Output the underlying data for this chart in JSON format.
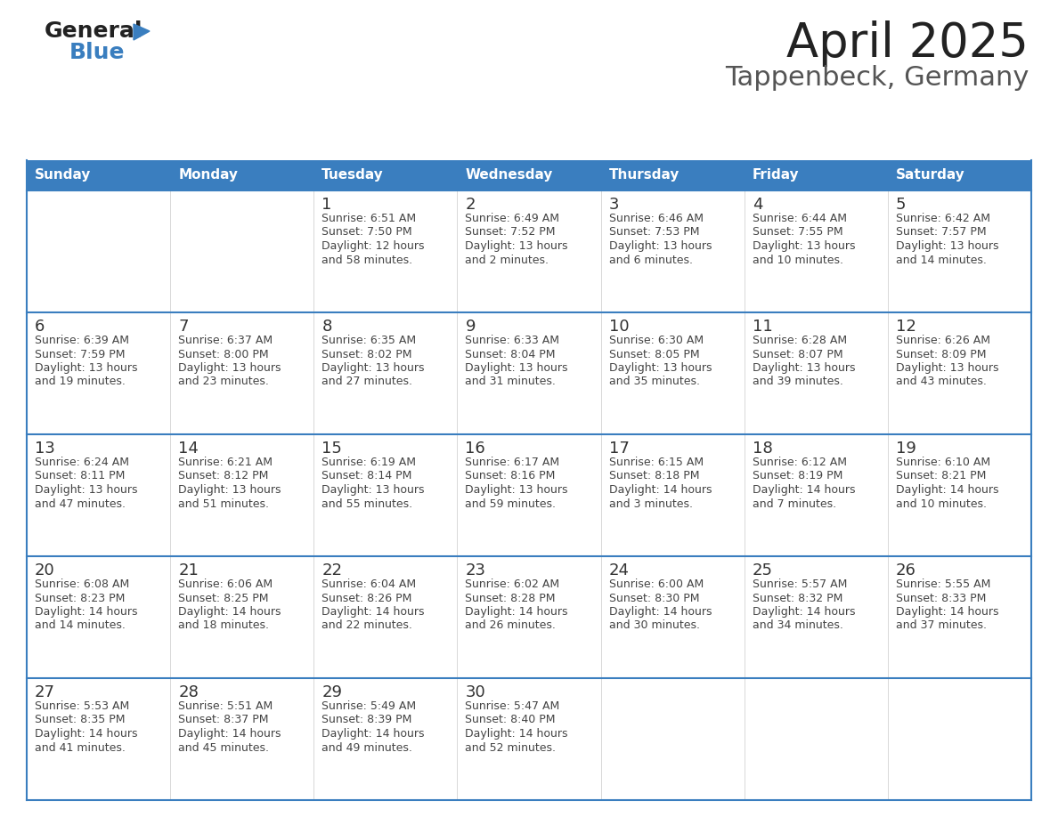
{
  "title": "April 2025",
  "subtitle": "Tappenbeck, Germany",
  "header_bg": "#3a7ebf",
  "header_text_color": "#ffffff",
  "cell_bg": "#ffffff",
  "cell_border_color": "#c8c8c8",
  "week_divider_color": "#3a7ebf",
  "day_number_color": "#333333",
  "cell_text_color": "#444444",
  "title_color": "#222222",
  "subtitle_color": "#555555",
  "logo_general_color": "#222222",
  "logo_blue_color": "#3a7ebf",
  "logo_triangle_color": "#3a7ebf",
  "day_names": [
    "Sunday",
    "Monday",
    "Tuesday",
    "Wednesday",
    "Thursday",
    "Friday",
    "Saturday"
  ],
  "calendar_data": [
    [
      {
        "day": "",
        "sunrise": "",
        "sunset": "",
        "daylight": ""
      },
      {
        "day": "",
        "sunrise": "",
        "sunset": "",
        "daylight": ""
      },
      {
        "day": "1",
        "sunrise": "Sunrise: 6:51 AM",
        "sunset": "Sunset: 7:50 PM",
        "daylight": "Daylight: 12 hours\nand 58 minutes."
      },
      {
        "day": "2",
        "sunrise": "Sunrise: 6:49 AM",
        "sunset": "Sunset: 7:52 PM",
        "daylight": "Daylight: 13 hours\nand 2 minutes."
      },
      {
        "day": "3",
        "sunrise": "Sunrise: 6:46 AM",
        "sunset": "Sunset: 7:53 PM",
        "daylight": "Daylight: 13 hours\nand 6 minutes."
      },
      {
        "day": "4",
        "sunrise": "Sunrise: 6:44 AM",
        "sunset": "Sunset: 7:55 PM",
        "daylight": "Daylight: 13 hours\nand 10 minutes."
      },
      {
        "day": "5",
        "sunrise": "Sunrise: 6:42 AM",
        "sunset": "Sunset: 7:57 PM",
        "daylight": "Daylight: 13 hours\nand 14 minutes."
      }
    ],
    [
      {
        "day": "6",
        "sunrise": "Sunrise: 6:39 AM",
        "sunset": "Sunset: 7:59 PM",
        "daylight": "Daylight: 13 hours\nand 19 minutes."
      },
      {
        "day": "7",
        "sunrise": "Sunrise: 6:37 AM",
        "sunset": "Sunset: 8:00 PM",
        "daylight": "Daylight: 13 hours\nand 23 minutes."
      },
      {
        "day": "8",
        "sunrise": "Sunrise: 6:35 AM",
        "sunset": "Sunset: 8:02 PM",
        "daylight": "Daylight: 13 hours\nand 27 minutes."
      },
      {
        "day": "9",
        "sunrise": "Sunrise: 6:33 AM",
        "sunset": "Sunset: 8:04 PM",
        "daylight": "Daylight: 13 hours\nand 31 minutes."
      },
      {
        "day": "10",
        "sunrise": "Sunrise: 6:30 AM",
        "sunset": "Sunset: 8:05 PM",
        "daylight": "Daylight: 13 hours\nand 35 minutes."
      },
      {
        "day": "11",
        "sunrise": "Sunrise: 6:28 AM",
        "sunset": "Sunset: 8:07 PM",
        "daylight": "Daylight: 13 hours\nand 39 minutes."
      },
      {
        "day": "12",
        "sunrise": "Sunrise: 6:26 AM",
        "sunset": "Sunset: 8:09 PM",
        "daylight": "Daylight: 13 hours\nand 43 minutes."
      }
    ],
    [
      {
        "day": "13",
        "sunrise": "Sunrise: 6:24 AM",
        "sunset": "Sunset: 8:11 PM",
        "daylight": "Daylight: 13 hours\nand 47 minutes."
      },
      {
        "day": "14",
        "sunrise": "Sunrise: 6:21 AM",
        "sunset": "Sunset: 8:12 PM",
        "daylight": "Daylight: 13 hours\nand 51 minutes."
      },
      {
        "day": "15",
        "sunrise": "Sunrise: 6:19 AM",
        "sunset": "Sunset: 8:14 PM",
        "daylight": "Daylight: 13 hours\nand 55 minutes."
      },
      {
        "day": "16",
        "sunrise": "Sunrise: 6:17 AM",
        "sunset": "Sunset: 8:16 PM",
        "daylight": "Daylight: 13 hours\nand 59 minutes."
      },
      {
        "day": "17",
        "sunrise": "Sunrise: 6:15 AM",
        "sunset": "Sunset: 8:18 PM",
        "daylight": "Daylight: 14 hours\nand 3 minutes."
      },
      {
        "day": "18",
        "sunrise": "Sunrise: 6:12 AM",
        "sunset": "Sunset: 8:19 PM",
        "daylight": "Daylight: 14 hours\nand 7 minutes."
      },
      {
        "day": "19",
        "sunrise": "Sunrise: 6:10 AM",
        "sunset": "Sunset: 8:21 PM",
        "daylight": "Daylight: 14 hours\nand 10 minutes."
      }
    ],
    [
      {
        "day": "20",
        "sunrise": "Sunrise: 6:08 AM",
        "sunset": "Sunset: 8:23 PM",
        "daylight": "Daylight: 14 hours\nand 14 minutes."
      },
      {
        "day": "21",
        "sunrise": "Sunrise: 6:06 AM",
        "sunset": "Sunset: 8:25 PM",
        "daylight": "Daylight: 14 hours\nand 18 minutes."
      },
      {
        "day": "22",
        "sunrise": "Sunrise: 6:04 AM",
        "sunset": "Sunset: 8:26 PM",
        "daylight": "Daylight: 14 hours\nand 22 minutes."
      },
      {
        "day": "23",
        "sunrise": "Sunrise: 6:02 AM",
        "sunset": "Sunset: 8:28 PM",
        "daylight": "Daylight: 14 hours\nand 26 minutes."
      },
      {
        "day": "24",
        "sunrise": "Sunrise: 6:00 AM",
        "sunset": "Sunset: 8:30 PM",
        "daylight": "Daylight: 14 hours\nand 30 minutes."
      },
      {
        "day": "25",
        "sunrise": "Sunrise: 5:57 AM",
        "sunset": "Sunset: 8:32 PM",
        "daylight": "Daylight: 14 hours\nand 34 minutes."
      },
      {
        "day": "26",
        "sunrise": "Sunrise: 5:55 AM",
        "sunset": "Sunset: 8:33 PM",
        "daylight": "Daylight: 14 hours\nand 37 minutes."
      }
    ],
    [
      {
        "day": "27",
        "sunrise": "Sunrise: 5:53 AM",
        "sunset": "Sunset: 8:35 PM",
        "daylight": "Daylight: 14 hours\nand 41 minutes."
      },
      {
        "day": "28",
        "sunrise": "Sunrise: 5:51 AM",
        "sunset": "Sunset: 8:37 PM",
        "daylight": "Daylight: 14 hours\nand 45 minutes."
      },
      {
        "day": "29",
        "sunrise": "Sunrise: 5:49 AM",
        "sunset": "Sunset: 8:39 PM",
        "daylight": "Daylight: 14 hours\nand 49 minutes."
      },
      {
        "day": "30",
        "sunrise": "Sunrise: 5:47 AM",
        "sunset": "Sunset: 8:40 PM",
        "daylight": "Daylight: 14 hours\nand 52 minutes."
      },
      {
        "day": "",
        "sunrise": "",
        "sunset": "",
        "daylight": ""
      },
      {
        "day": "",
        "sunrise": "",
        "sunset": "",
        "daylight": ""
      },
      {
        "day": "",
        "sunrise": "",
        "sunset": "",
        "daylight": ""
      }
    ]
  ]
}
